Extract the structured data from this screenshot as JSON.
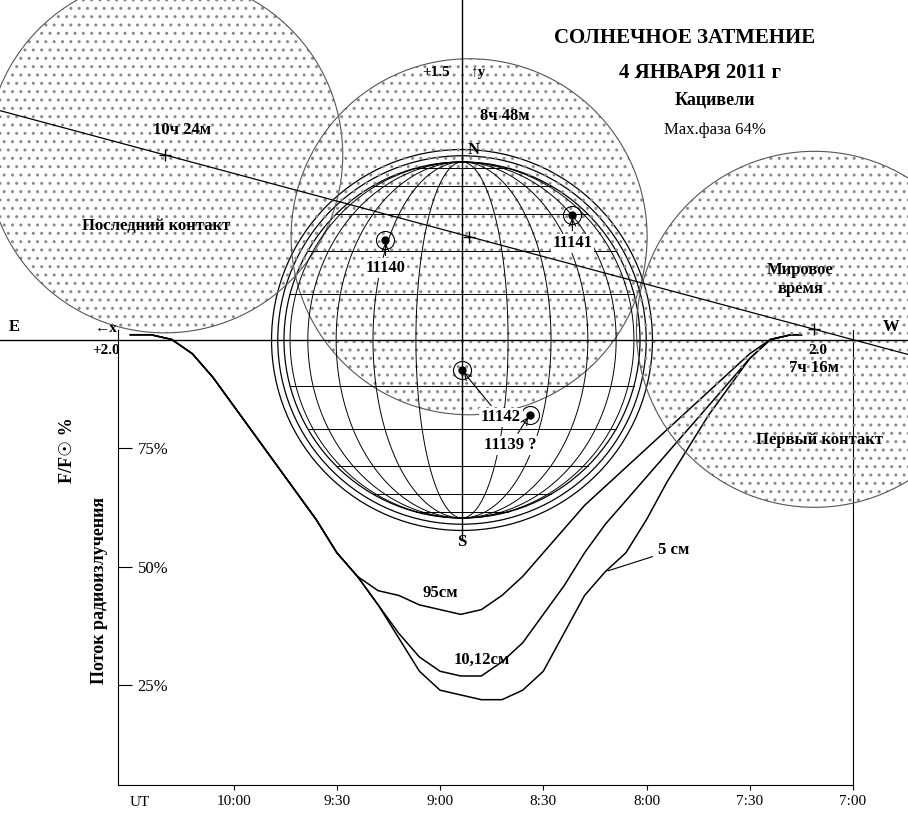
{
  "chart_data": {
    "type": "line",
    "title": "СОЛНЕЧНОЕ ЗАТМЕНИЕ",
    "subtitle": [
      "4 ЯНВАРЯ 2011 г",
      "Кацивели"
    ],
    "x_label": "UT",
    "y_label": "Поток радиоизлучения",
    "y_unit_label": "F/F☉ %",
    "x": [
      10.5,
      10.4,
      10.3,
      10.2,
      10.1,
      10.0,
      9.9,
      9.8,
      9.7,
      9.6,
      9.5,
      9.4,
      9.3,
      9.2,
      9.1,
      9.0,
      8.9,
      8.8,
      8.7,
      8.6,
      8.5,
      8.4,
      8.3,
      8.2,
      8.1,
      8.0,
      7.9,
      7.8,
      7.7,
      7.6,
      7.5,
      7.4,
      7.3,
      7.25
    ],
    "xlim": [
      10.56,
      7.0
    ],
    "xticks": [
      {
        "value": 10.0,
        "label": "10:00"
      },
      {
        "value": 9.5,
        "label": "9:30"
      },
      {
        "value": 9.0,
        "label": "9:00"
      },
      {
        "value": 8.5,
        "label": "8:30"
      },
      {
        "value": 8.0,
        "label": "8:00"
      },
      {
        "value": 7.5,
        "label": "7:30"
      },
      {
        "value": 7.0,
        "label": "7:00"
      }
    ],
    "ylim": [
      4,
      100
    ],
    "yticks": [
      {
        "value": 25,
        "label": "25%"
      },
      {
        "value": 50,
        "label": "50%"
      },
      {
        "value": 75,
        "label": "75%"
      }
    ],
    "grid": false,
    "series": [
      {
        "name": "95см",
        "color": "#000000",
        "values": [
          99,
          99,
          98,
          95,
          90,
          84,
          78,
          72,
          66,
          60,
          53,
          48,
          45,
          44,
          42,
          41,
          40,
          41,
          44,
          48,
          53,
          58,
          63,
          67,
          71,
          75,
          79,
          83,
          87,
          91,
          95,
          98,
          99,
          99
        ]
      },
      {
        "name": "10,12см",
        "color": "#000000",
        "values": [
          99,
          99,
          98,
          95,
          90,
          84,
          78,
          72,
          66,
          60,
          53,
          48,
          42,
          36,
          31,
          28,
          27,
          27,
          30,
          34,
          40,
          46,
          53,
          59,
          64,
          69,
          74,
          79,
          84,
          89,
          94,
          98,
          99,
          99
        ]
      },
      {
        "name": "5 см",
        "color": "#000000",
        "values": [
          99,
          99,
          98,
          95,
          90,
          84,
          78,
          72,
          66,
          60,
          53,
          48,
          42,
          35,
          28,
          24,
          23,
          22,
          22,
          24,
          28,
          36,
          44,
          49,
          53,
          60,
          68,
          75,
          82,
          88,
          94,
          98,
          99,
          99
        ]
      }
    ],
    "diagram": {
      "max_phase": "Мах.фаза 64%",
      "time_label": "Мировое\nвремя",
      "north": "N",
      "south": "S",
      "east": "E",
      "west": "W",
      "x_axis": {
        "label": "←x",
        "ticks": [
          {
            "value": 2.0,
            "label": "+2.0"
          },
          {
            "value": -2.0,
            "label": "2.0"
          }
        ]
      },
      "y_axis": {
        "label": "↑y",
        "ticks": [
          {
            "value": 1.5,
            "label": "+1.5"
          }
        ]
      },
      "moon_radius": 1.0,
      "moons": [
        {
          "time": "10ч 24м",
          "label": "Последний контакт",
          "x": 1.67,
          "y": 1.04
        },
        {
          "time": "8ч 48м",
          "x": -0.04,
          "y": 0.58
        },
        {
          "time": "7ч 16м",
          "label": "Первый контакт",
          "x": -1.98,
          "y": 0.06
        }
      ],
      "regions": [
        {
          "label": "11140",
          "x": 0.43,
          "y": 0.56
        },
        {
          "label": "11141",
          "x": -0.62,
          "y": 0.7
        },
        {
          "label": "11142",
          "x": 0.0,
          "y": -0.17
        },
        {
          "label": "11139 ?",
          "x": -0.38,
          "y": -0.42
        }
      ]
    }
  }
}
